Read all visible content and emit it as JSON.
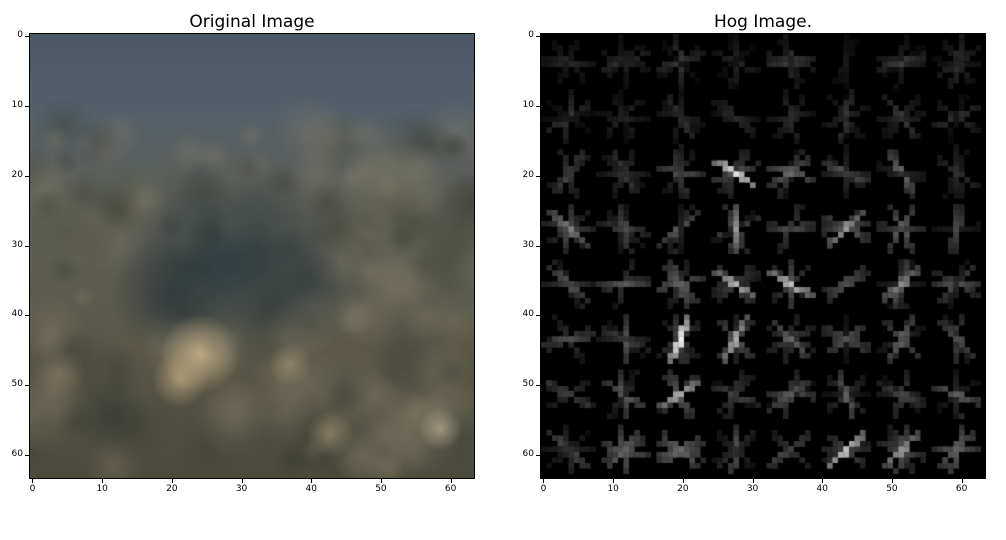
{
  "left_panel": {
    "title": "Original Image",
    "y_ticks": [
      "0",
      "10",
      "20",
      "30",
      "40",
      "50",
      "60"
    ],
    "x_ticks": [
      "0",
      "10",
      "20",
      "30",
      "40",
      "50",
      "60"
    ]
  },
  "right_panel": {
    "title": "Hog Image.",
    "y_ticks": [
      "0",
      "10",
      "20",
      "30",
      "40",
      "50",
      "60"
    ],
    "x_ticks": [
      "0",
      "10",
      "20",
      "30",
      "40",
      "50",
      "60"
    ]
  },
  "colors": {
    "sky": "#4b5a6a",
    "vegetation": "#5e5c4c",
    "dark_patch": "#2f3c46",
    "highlight": "#c8b08a",
    "hog_background": "#000000",
    "hog_bright": "#ffffff"
  }
}
